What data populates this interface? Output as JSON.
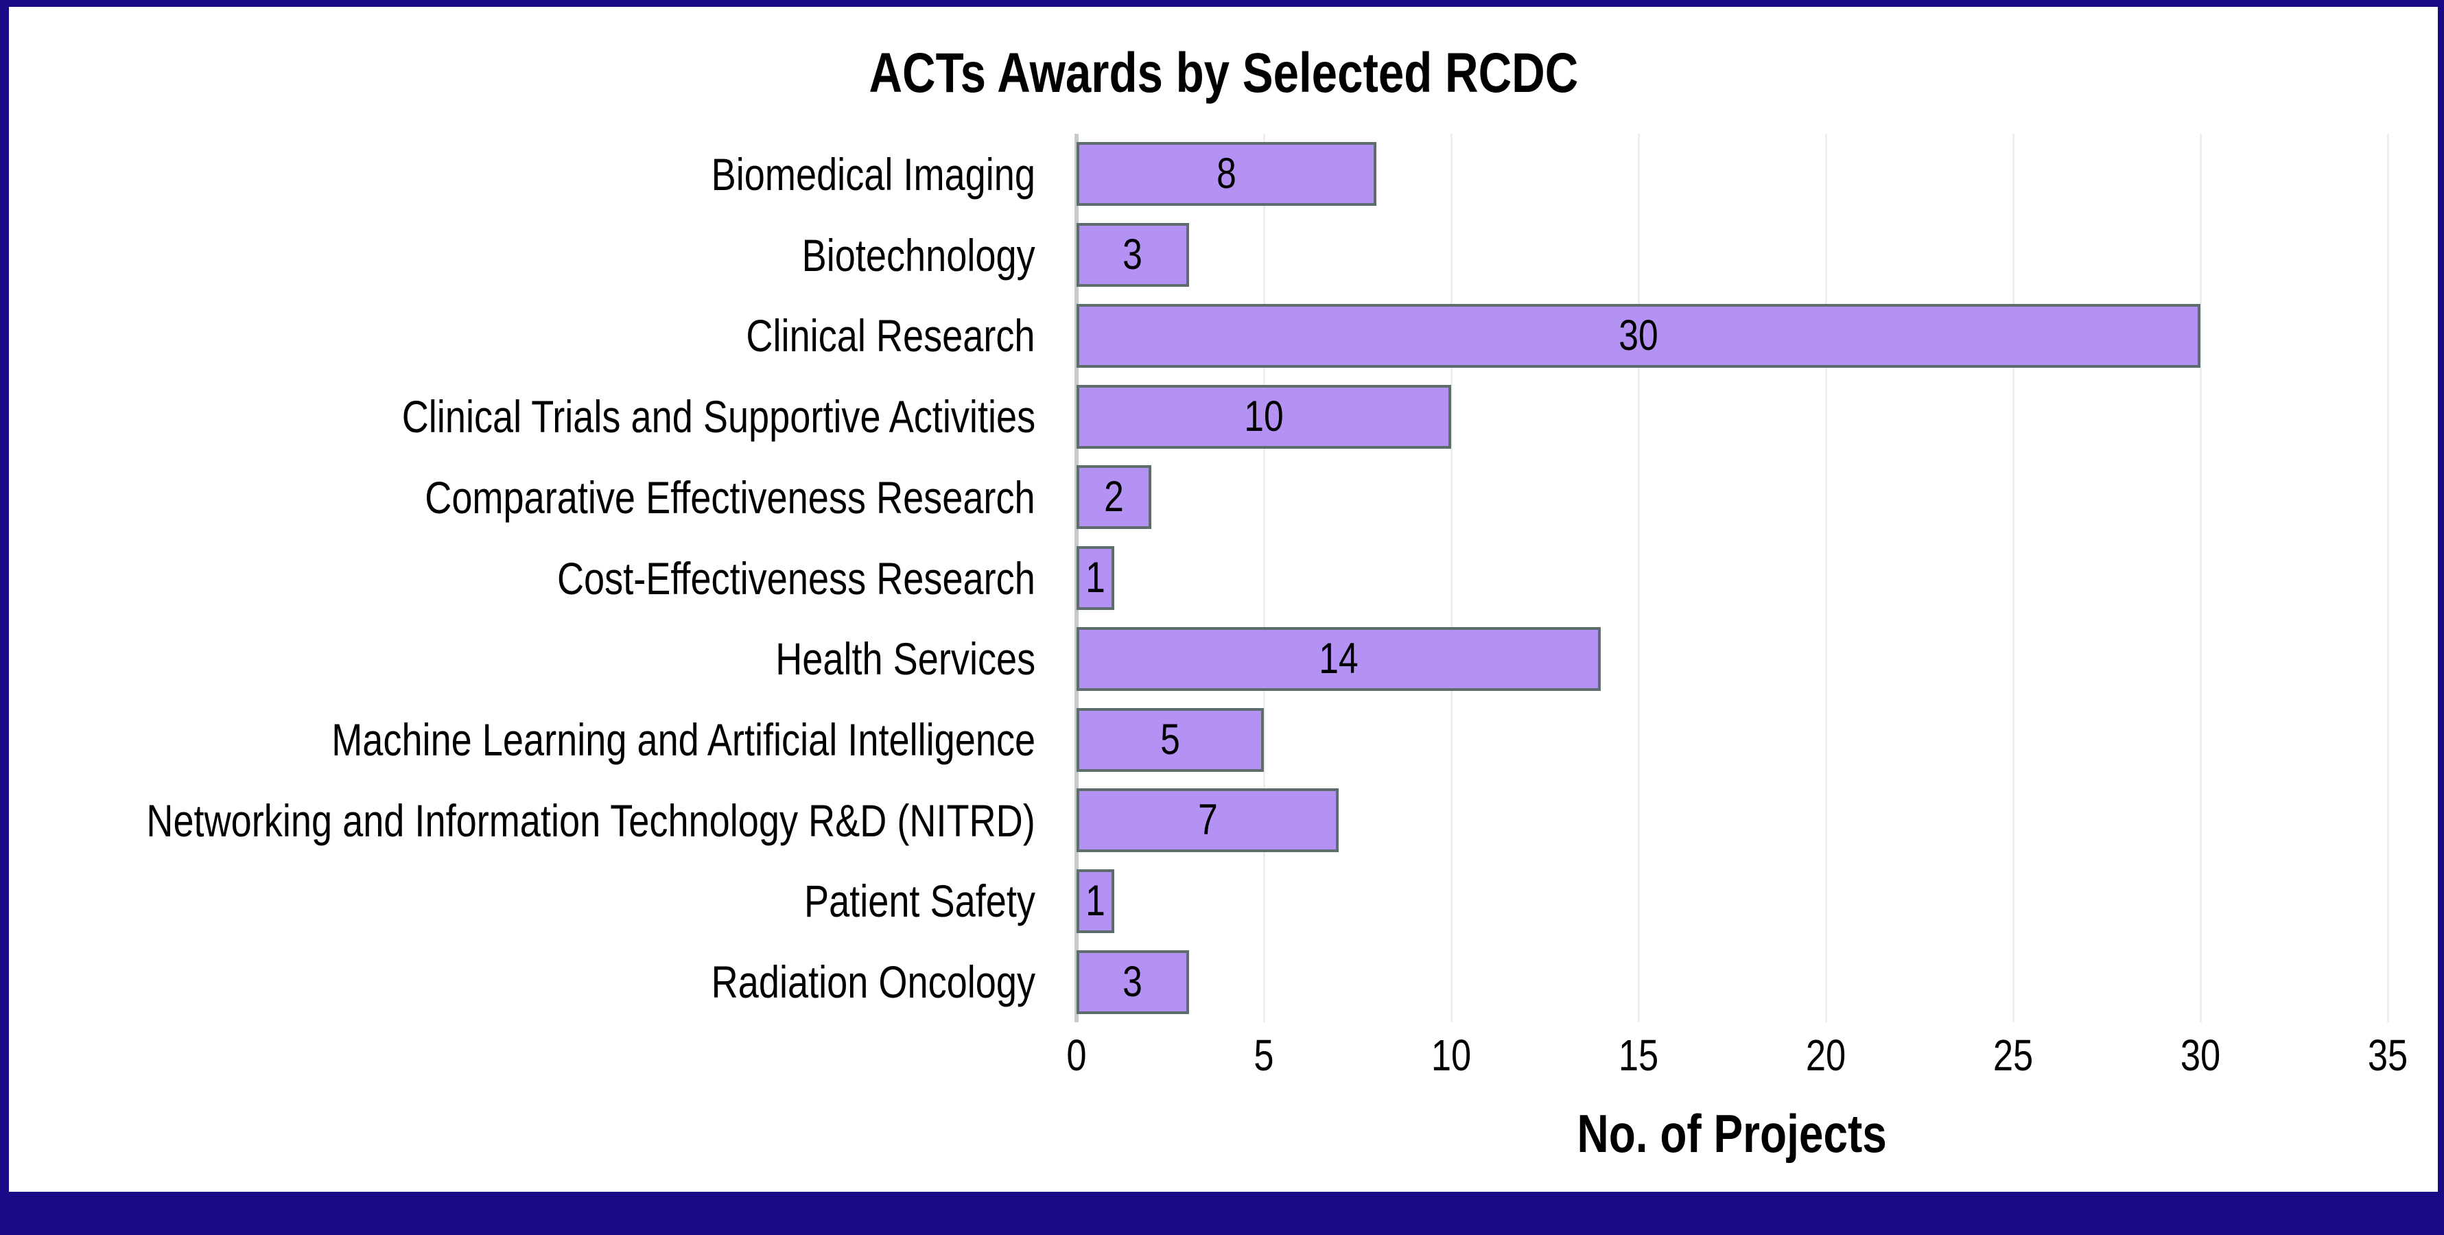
{
  "chart_data": {
    "type": "bar",
    "orientation": "horizontal",
    "title": "ACTs Awards by Selected RCDC",
    "xlabel": "No. of Projects",
    "ylabel": "",
    "categories": [
      "Biomedical Imaging",
      "Biotechnology",
      "Clinical Research",
      "Clinical Trials and Supportive Activities",
      "Comparative Effectiveness Research",
      "Cost-Effectiveness Research",
      "Health Services",
      "Machine Learning and Artificial Intelligence",
      "Networking and Information Technology R&D (NITRD)",
      "Patient Safety",
      "Radiation Oncology"
    ],
    "values": [
      8,
      3,
      30,
      10,
      2,
      1,
      14,
      5,
      7,
      1,
      3
    ],
    "xlim": [
      0,
      35
    ],
    "xticks": [
      0,
      5,
      10,
      15,
      20,
      25,
      30,
      35
    ],
    "grid": true,
    "legend": false,
    "value_label_position": "centered-inside-bar",
    "colors": {
      "bar_fill": "#b392f4",
      "bar_border": "#5d6d6e",
      "gridline": "#eeedee",
      "axis_line": "#c5cbca",
      "frame": "#1a0a85",
      "background": "#ffffff",
      "text": "#000000"
    }
  }
}
